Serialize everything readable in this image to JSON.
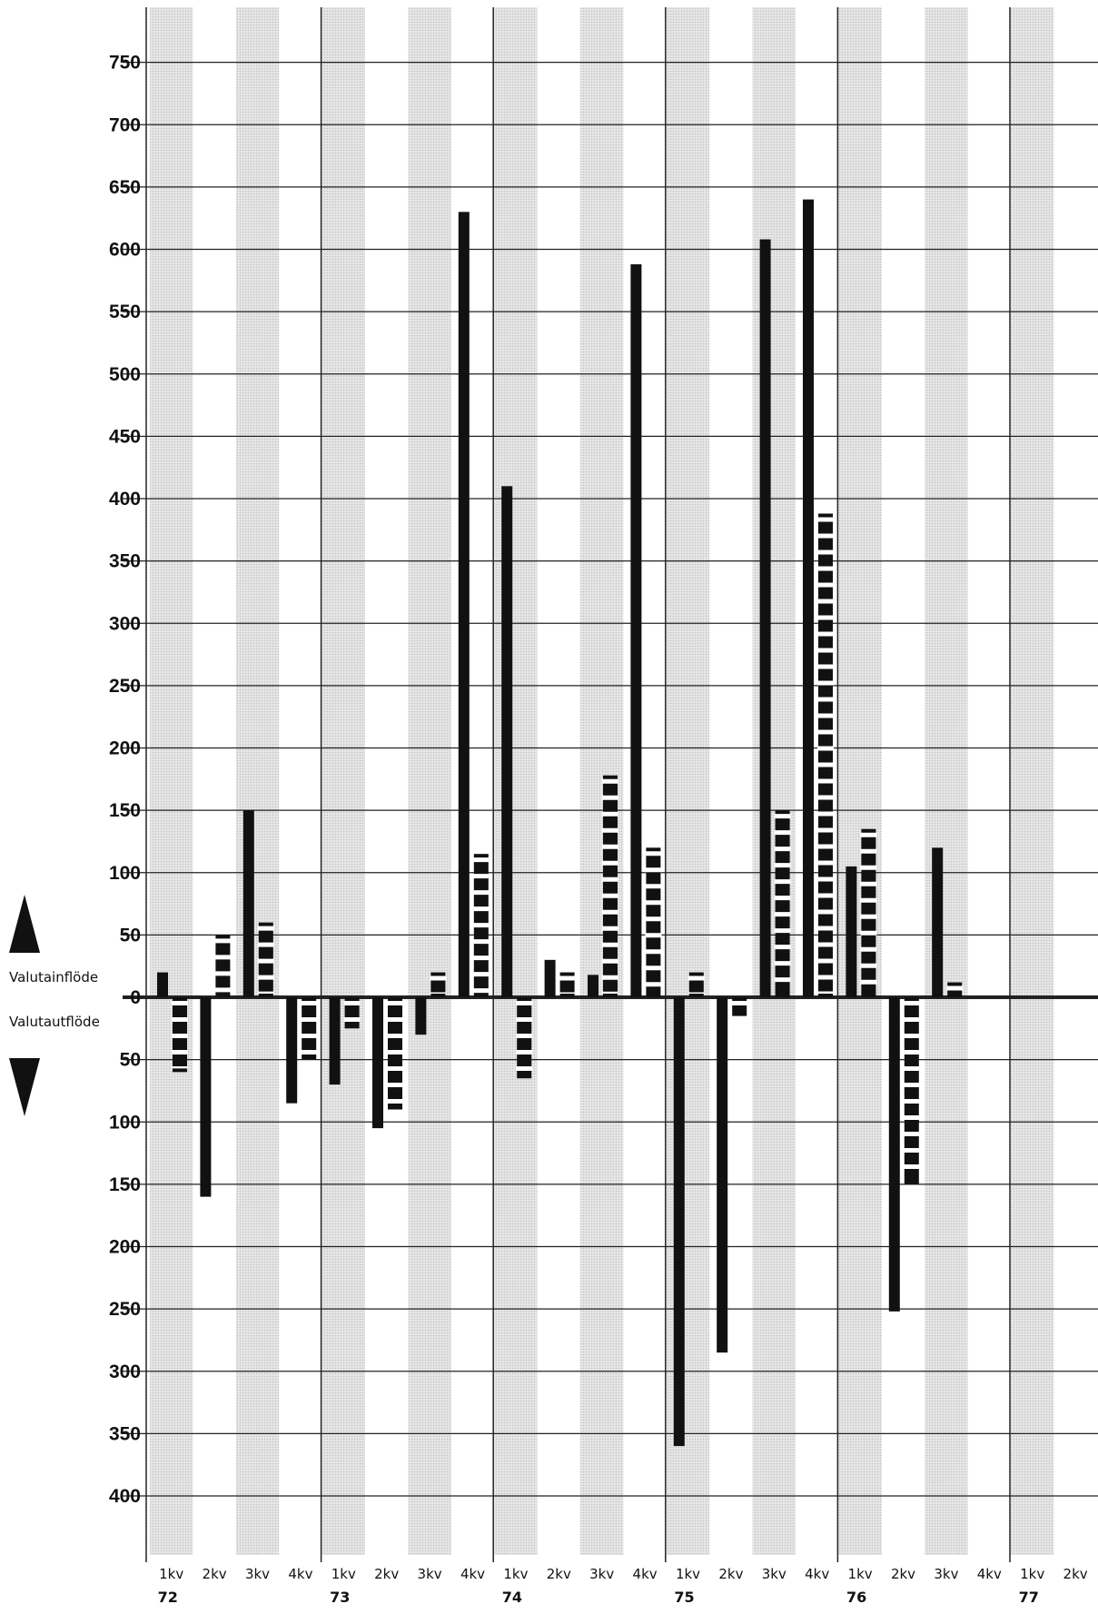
{
  "chart_data": {
    "type": "bar",
    "labels": {
      "inflow": "Valutainflöde",
      "outflow": "Valutautflöde"
    },
    "y_ticks": [
      {
        "value": 750,
        "label": "750"
      },
      {
        "value": 700,
        "label": "700"
      },
      {
        "value": 650,
        "label": "650"
      },
      {
        "value": 600,
        "label": "600"
      },
      {
        "value": 550,
        "label": "550"
      },
      {
        "value": 500,
        "label": "500"
      },
      {
        "value": 450,
        "label": "450"
      },
      {
        "value": 400,
        "label": "400"
      },
      {
        "value": 350,
        "label": "350"
      },
      {
        "value": 300,
        "label": "300"
      },
      {
        "value": 250,
        "label": "250"
      },
      {
        "value": 200,
        "label": "200"
      },
      {
        "value": 150,
        "label": "150"
      },
      {
        "value": 100,
        "label": "100"
      },
      {
        "value": 50,
        "label": "50"
      },
      {
        "value": 0,
        "label": "0"
      },
      {
        "value": -50,
        "label": "50"
      },
      {
        "value": -100,
        "label": "100"
      },
      {
        "value": -150,
        "label": "150"
      },
      {
        "value": -200,
        "label": "200"
      },
      {
        "value": -250,
        "label": "250"
      },
      {
        "value": -300,
        "label": "300"
      },
      {
        "value": -350,
        "label": "350"
      },
      {
        "value": -400,
        "label": "400"
      }
    ],
    "ylim": [
      -450,
      800
    ],
    "categories": [
      "1kv",
      "2kv",
      "3kv",
      "4kv",
      "1kv",
      "2kv",
      "3kv",
      "4kv",
      "1kv",
      "2kv",
      "3kv",
      "4kv",
      "1kv",
      "2kv",
      "3kv",
      "4kv",
      "1kv",
      "2kv",
      "3kv",
      "4kv",
      "1kv",
      "2kv"
    ],
    "year_labels": [
      {
        "index": 0,
        "label": "72"
      },
      {
        "index": 4,
        "label": "73"
      },
      {
        "index": 8,
        "label": "74"
      },
      {
        "index": 12,
        "label": "75"
      },
      {
        "index": 16,
        "label": "76"
      },
      {
        "index": 20,
        "label": "77"
      }
    ],
    "series": [
      {
        "style": "solid",
        "values": [
          20,
          -160,
          150,
          -85,
          -70,
          -105,
          -30,
          630,
          410,
          30,
          18,
          588,
          -360,
          -285,
          608,
          640,
          105,
          -252,
          120,
          0,
          0,
          0
        ]
      },
      {
        "style": "dashed",
        "values": [
          -60,
          50,
          60,
          -50,
          -25,
          -90,
          20,
          115,
          -65,
          20,
          178,
          120,
          20,
          -15,
          150,
          388,
          135,
          -150,
          12,
          0,
          0,
          0
        ]
      }
    ],
    "colors": {
      "bar": "#111111",
      "shade": "#d6d6d6",
      "grid": "#222222"
    },
    "grid": true,
    "shaded_bands": "alternate quarters"
  }
}
